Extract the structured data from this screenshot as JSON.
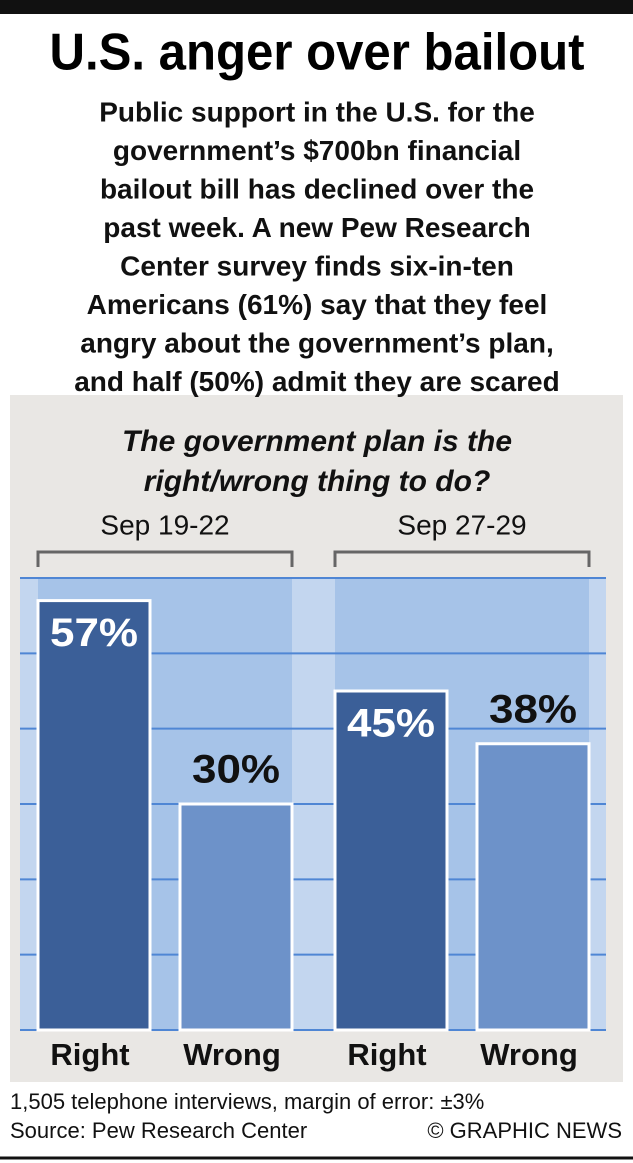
{
  "chart_data": {
    "type": "bar",
    "title": "U.S. anger over bailout",
    "subtitle": [
      "Public support in the U.S. for the",
      "government’s $700bn financial",
      "bailout bill has declined over the",
      "past week. A new Pew Research",
      "Center survey finds six-in-ten",
      "Americans (61%) say that they feel",
      "angry about the government’s plan,",
      "and half (50%) admit they are scared"
    ],
    "question": [
      "The government plan is the",
      "right/wrong thing to do?"
    ],
    "categories": [
      "Sep 19-22",
      "Sep 27-29"
    ],
    "series": [
      {
        "name": "Right",
        "color": "#3b5f98",
        "values": [
          57,
          45
        ],
        "value_labels": [
          "57%",
          "45%"
        ]
      },
      {
        "name": "Wrong",
        "color": "#6d92c9",
        "values": [
          30,
          38
        ],
        "value_labels": [
          "30%",
          "38%"
        ]
      }
    ],
    "ylim": [
      0,
      60
    ],
    "yticks": [
      0,
      10,
      20,
      30,
      40,
      50,
      60
    ],
    "grid": true,
    "notes": [
      "1,505 telephone interviews, margin of error: ±3%"
    ],
    "source": "Source: Pew Research Center",
    "credit": "© GRAPHIC NEWS"
  }
}
